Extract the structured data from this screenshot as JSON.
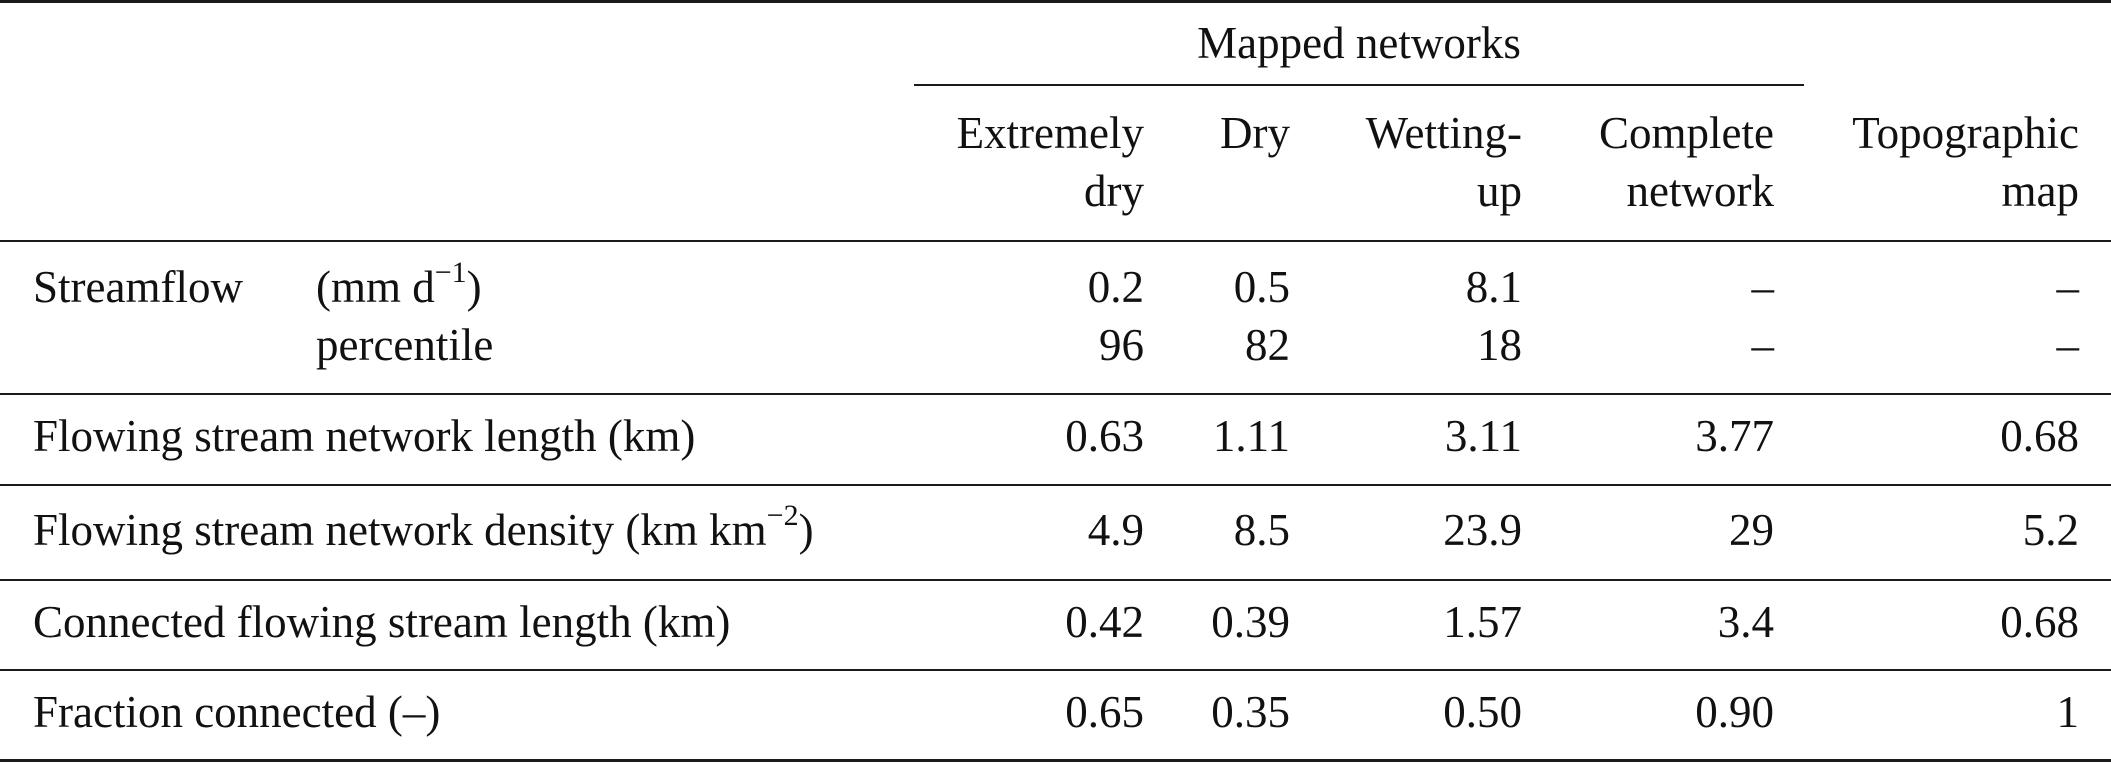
{
  "header": {
    "group_label": "Mapped networks",
    "columns": [
      {
        "line1": "Extremely",
        "line2": "dry"
      },
      {
        "line1": "Dry",
        "line2": ""
      },
      {
        "line1": "Wetting-",
        "line2": "up"
      },
      {
        "line1": "Complete",
        "line2": "network"
      },
      {
        "line1": "Topographic",
        "line2": "map"
      }
    ]
  },
  "rows": {
    "streamflow": {
      "label": "Streamflow",
      "unit_prefix": "(mm d",
      "unit_exp": "−1",
      "unit_suffix": ")",
      "sublabel": "percentile",
      "values_mm": [
        "0.2",
        "0.5",
        "8.1",
        "–",
        "–"
      ],
      "values_pct": [
        "96",
        "82",
        "18",
        "–",
        "–"
      ]
    },
    "length": {
      "label": "Flowing stream network length (km)",
      "values": [
        "0.63",
        "1.11",
        "3.11",
        "3.77",
        "0.68"
      ]
    },
    "density": {
      "label_prefix": "Flowing stream network density (km km",
      "label_exp": "−2",
      "label_suffix": ")",
      "values": [
        "4.9",
        "8.5",
        "23.9",
        "29",
        "5.2"
      ]
    },
    "connected": {
      "label": "Connected flowing stream length (km)",
      "values": [
        "0.42",
        "0.39",
        "1.57",
        "3.4",
        "0.68"
      ]
    },
    "fraction": {
      "label": "Fraction connected (–)",
      "values": [
        "0.65",
        "0.35",
        "0.50",
        "0.90",
        "1"
      ]
    }
  }
}
